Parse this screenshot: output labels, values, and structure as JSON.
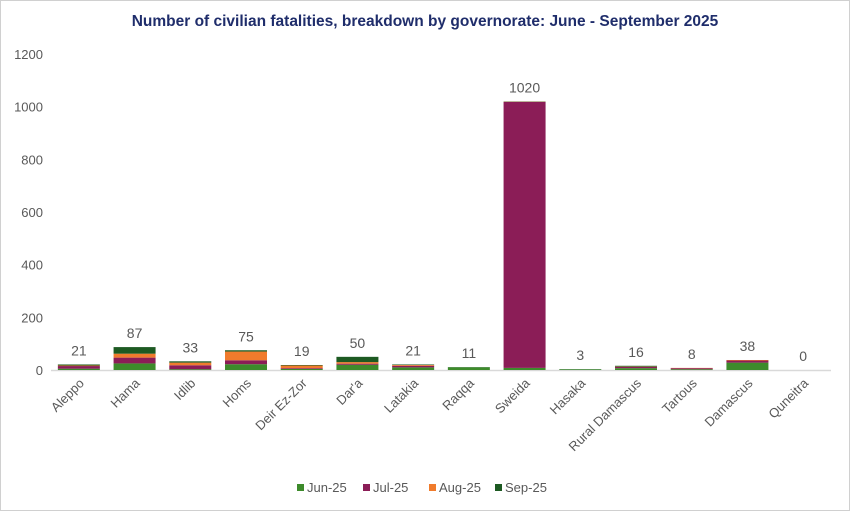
{
  "chart_data": {
    "type": "bar",
    "stacked": true,
    "title": "Number of civilian fatalities, breakdown by governorate: June - September 2025",
    "xlabel": "",
    "ylabel": "",
    "ylim": [
      0,
      1200
    ],
    "yticks": [
      0,
      200,
      400,
      600,
      800,
      1000,
      1200
    ],
    "grid": false,
    "legend_position": "bottom",
    "categories": [
      "Aleppo",
      "Hama",
      "Idlib",
      "Homs",
      "Deir Ez-Zor",
      "Dar'a",
      "Latakia",
      "Raqqa",
      "Sweida",
      "Hasaka",
      "Rural Damascus",
      "Tartous",
      "Damascus",
      "Quneitra"
    ],
    "totals": [
      21,
      87,
      33,
      75,
      19,
      50,
      21,
      11,
      1020,
      3,
      16,
      8,
      38,
      0
    ],
    "series": [
      {
        "name": "Jun-25",
        "color": "#3d8b2b",
        "values": [
          5,
          25,
          3,
          22,
          4,
          20,
          10,
          10,
          8,
          2,
          7,
          3,
          28,
          0
        ]
      },
      {
        "name": "Jul-25",
        "color": "#8b1d57",
        "values": [
          10,
          22,
          15,
          15,
          3,
          4,
          6,
          0,
          1010,
          0,
          5,
          4,
          8,
          0
        ]
      },
      {
        "name": "Aug-25",
        "color": "#f07b2c",
        "values": [
          2,
          15,
          10,
          33,
          10,
          6,
          3,
          0,
          1,
          0,
          1,
          1,
          2,
          0
        ]
      },
      {
        "name": "Sep-25",
        "color": "#1d5a22",
        "values": [
          4,
          25,
          5,
          5,
          2,
          20,
          2,
          1,
          1,
          1,
          3,
          0,
          0,
          0
        ]
      }
    ]
  }
}
